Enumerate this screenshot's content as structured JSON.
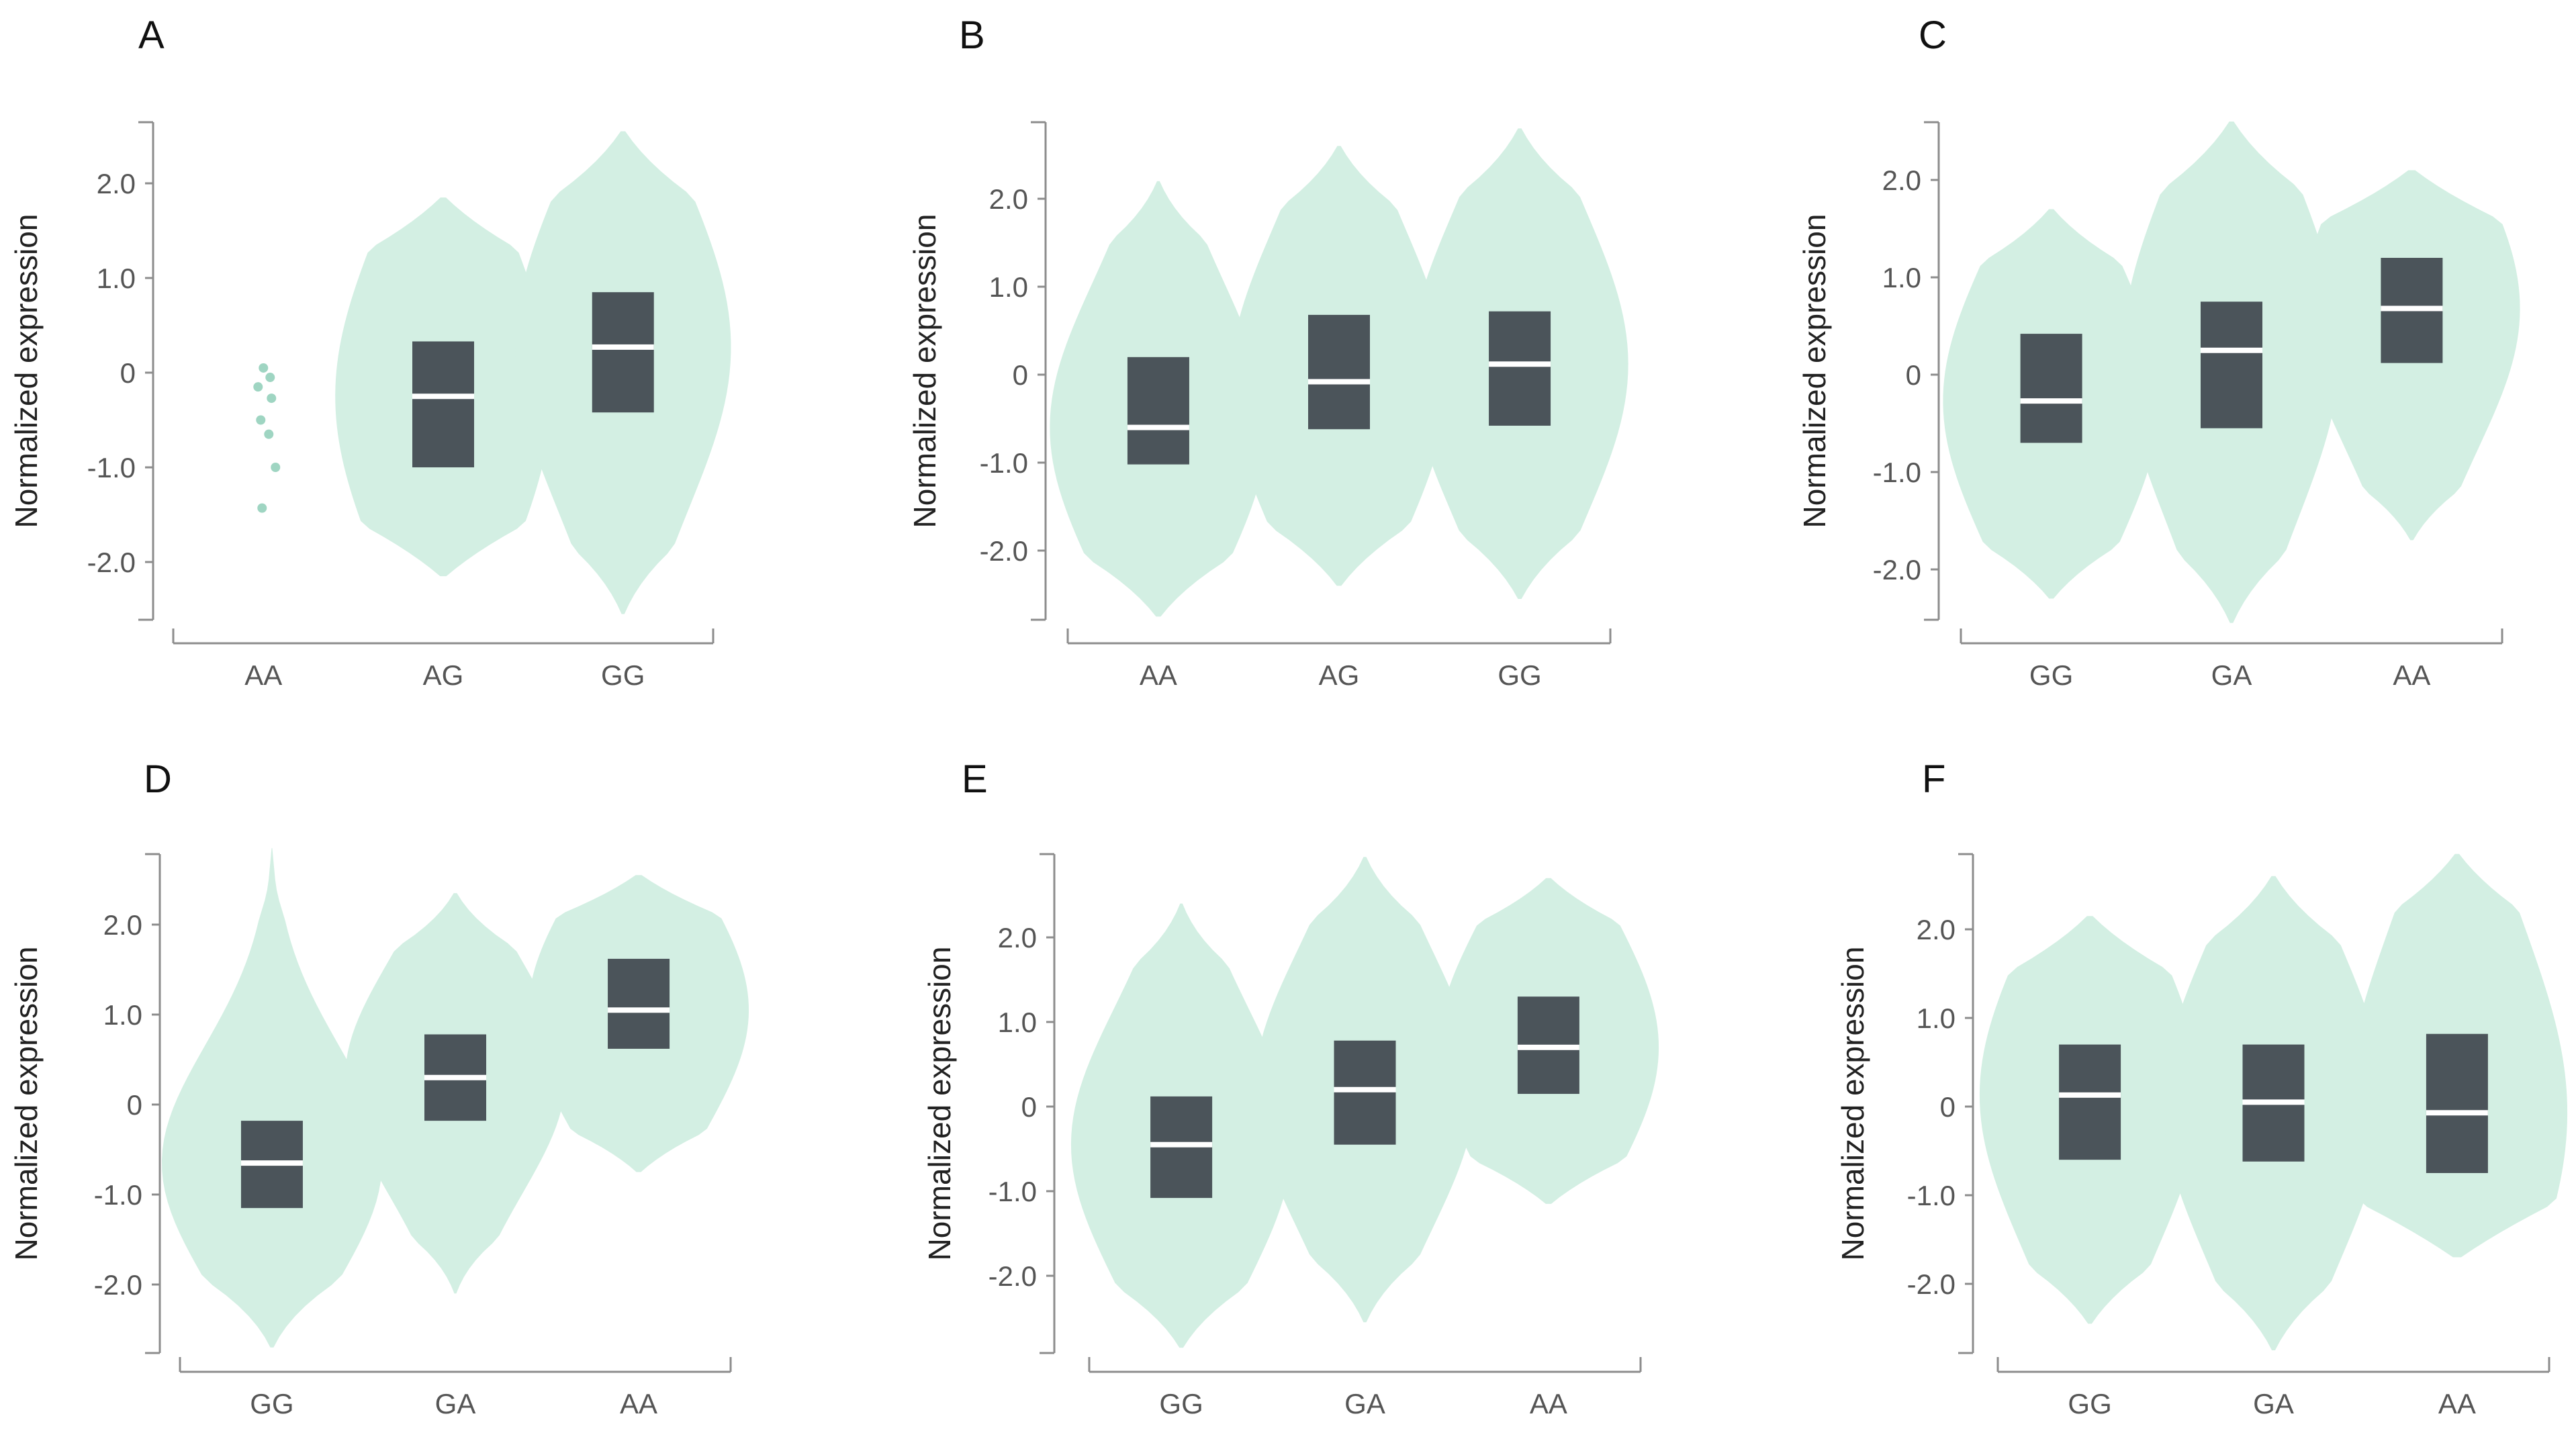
{
  "colors": {
    "violin": "#d3efe3",
    "box": "#4b545a",
    "median": "#ffffff",
    "axis": "#8c8c8c",
    "tick_text": "#555555",
    "panel_label": "#111111",
    "ylabel": "#222222",
    "outlier": "#9fd5c2"
  },
  "chart_data": [
    {
      "type": "violin",
      "panel": "A",
      "ylabel": "Normalized expression",
      "yticks": [
        "2.0",
        "1.0",
        "0",
        "-1.0",
        "-2.0"
      ],
      "ylim": [
        -2.6,
        2.7
      ],
      "categories": [
        "AA",
        "AG",
        "GG"
      ],
      "series": [
        {
          "category": "AA",
          "violin": false,
          "outliers": [
            0.05,
            -0.05,
            -0.15,
            -0.27,
            -0.5,
            -0.65,
            -1.0,
            -1.43
          ]
        },
        {
          "category": "AG",
          "min": -2.15,
          "max": 1.85,
          "q1": -1.0,
          "median": -0.25,
          "q3": 0.33
        },
        {
          "category": "GG",
          "min": -2.55,
          "max": 2.55,
          "q1": -0.42,
          "median": 0.27,
          "q3": 0.85
        }
      ]
    },
    {
      "type": "violin",
      "panel": "B",
      "ylabel": "Normalized expression",
      "yticks": [
        "2.0",
        "1.0",
        "0",
        "-1.0",
        "-2.0"
      ],
      "ylim": [
        -2.85,
        2.9
      ],
      "categories": [
        "AA",
        "AG",
        "GG"
      ],
      "series": [
        {
          "category": "AA",
          "min": -2.75,
          "max": 2.2,
          "q1": -1.02,
          "median": -0.6,
          "q3": 0.2
        },
        {
          "category": "AG",
          "min": -2.4,
          "max": 2.6,
          "q1": -0.62,
          "median": -0.08,
          "q3": 0.68
        },
        {
          "category": "GG",
          "min": -2.55,
          "max": 2.8,
          "q1": -0.58,
          "median": 0.12,
          "q3": 0.72
        }
      ]
    },
    {
      "type": "violin",
      "panel": "C",
      "ylabel": "Normalized expression",
      "yticks": [
        "2.0",
        "1.0",
        "0",
        "-1.0",
        "-2.0"
      ],
      "ylim": [
        -2.6,
        2.7
      ],
      "categories": [
        "GG",
        "GA",
        "AA"
      ],
      "series": [
        {
          "category": "GG",
          "min": -2.3,
          "max": 1.7,
          "q1": -0.7,
          "median": -0.27,
          "q3": 0.42
        },
        {
          "category": "GA",
          "min": -2.55,
          "max": 2.6,
          "q1": -0.55,
          "median": 0.25,
          "q3": 0.75
        },
        {
          "category": "AA",
          "min": -1.7,
          "max": 2.1,
          "q1": 0.12,
          "median": 0.68,
          "q3": 1.2
        }
      ]
    },
    {
      "type": "violin",
      "panel": "D",
      "ylabel": "Normalized expression",
      "yticks": [
        "2.0",
        "1.0",
        "0",
        "-1.0",
        "-2.0"
      ],
      "ylim": [
        -2.75,
        2.9
      ],
      "categories": [
        "GG",
        "GA",
        "AA"
      ],
      "series": [
        {
          "category": "GG",
          "min": -2.7,
          "max": 2.85,
          "q1": -1.15,
          "median": -0.65,
          "q3": -0.18
        },
        {
          "category": "GA",
          "min": -2.1,
          "max": 2.35,
          "q1": -0.18,
          "median": 0.3,
          "q3": 0.78
        },
        {
          "category": "AA",
          "min": -0.75,
          "max": 2.55,
          "q1": 0.62,
          "median": 1.05,
          "q3": 1.62
        }
      ]
    },
    {
      "type": "violin",
      "panel": "E",
      "ylabel": "Normalized expression",
      "yticks": [
        "2.0",
        "1.0",
        "0",
        "-1.0",
        "-2.0"
      ],
      "ylim": [
        -2.9,
        2.95
      ],
      "categories": [
        "GG",
        "GA",
        "AA"
      ],
      "series": [
        {
          "category": "GG",
          "min": -2.85,
          "max": 2.4,
          "q1": -1.08,
          "median": -0.45,
          "q3": 0.12
        },
        {
          "category": "GA",
          "min": -2.55,
          "max": 2.95,
          "q1": -0.45,
          "median": 0.2,
          "q3": 0.78
        },
        {
          "category": "AA",
          "min": -1.15,
          "max": 2.7,
          "q1": 0.15,
          "median": 0.7,
          "q3": 1.3
        }
      ]
    },
    {
      "type": "violin",
      "panel": "F",
      "ylabel": "Normalized expression",
      "yticks": [
        "2.0",
        "1.0",
        "0",
        "-1.0",
        "-2.0"
      ],
      "ylim": [
        -2.85,
        2.9
      ],
      "categories": [
        "GG",
        "GA",
        "AA"
      ],
      "series": [
        {
          "category": "GG",
          "min": -2.45,
          "max": 2.15,
          "q1": -0.6,
          "median": 0.13,
          "q3": 0.7
        },
        {
          "category": "GA",
          "min": -2.75,
          "max": 2.6,
          "q1": -0.62,
          "median": 0.05,
          "q3": 0.7
        },
        {
          "category": "AA",
          "min": -1.7,
          "max": 2.85,
          "q1": -0.75,
          "median": -0.07,
          "q3": 0.82
        }
      ]
    }
  ]
}
